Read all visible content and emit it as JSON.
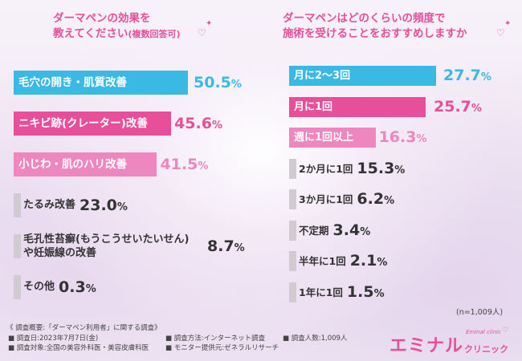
{
  "colors": {
    "pink": "#e74f9a",
    "blue": "#39b9e4",
    "light_pink": "#ee86bf",
    "grey": "#cfcbd1"
  },
  "left": {
    "title_line1": "ダーマペンの効果を",
    "title_line2_main": "教えてください",
    "title_line2_note": "(複数回答可)"
  },
  "right": {
    "title_line1": "ダーマペンはどのくらいの頻度で",
    "title_line2": "施術を受けることをおすすめしますか"
  },
  "chart_data": [
    {
      "type": "bar",
      "orientation": "horizontal",
      "title": "ダーマペンの効果を教えてください(複数回答可)",
      "unit": "%",
      "categories": [
        "毛穴の開き・肌質改善",
        "ニキビ跡(クレーター)改善",
        "小じわ・肌のハリ改善",
        "たるみ改善",
        "毛孔性苔癬(もうこうせいたいせん)や妊娠線の改善",
        "その他"
      ],
      "values": [
        50.5,
        45.6,
        41.5,
        23.0,
        8.7,
        0.3
      ],
      "value_labels": [
        "50.5",
        "45.6",
        "41.5",
        "23.0",
        "8.7",
        "0.3"
      ],
      "label_lines": [
        [
          "毛穴の開き・肌質改善"
        ],
        [
          "ニキビ跡(クレーター)改善"
        ],
        [
          "小じわ・肌のハリ改善"
        ],
        [
          "たるみ改善"
        ],
        [
          "毛孔性苔癬(もうこうせいたいせん)",
          "や妊娠線の改善"
        ],
        [
          "その他"
        ]
      ],
      "bar_colors": [
        "blue",
        "pink",
        "light_pink",
        "grey",
        "grey",
        "grey"
      ],
      "label_colors": [
        "#ffffff",
        "#ffffff",
        "#ffffff",
        "#333333",
        "#333333",
        "#333333"
      ],
      "value_colors": [
        "#39b9e4",
        "#e74f9a",
        "#ee86bf",
        "#333333",
        "#333333",
        "#333333"
      ]
    },
    {
      "type": "bar",
      "orientation": "horizontal",
      "title": "ダーマペンはどのくらいの頻度で施術を受けることをおすすめしますか",
      "unit": "%",
      "categories": [
        "月に2〜3回",
        "月に1回",
        "週に1回以上",
        "2か月に1回",
        "3か月に1回",
        "不定期",
        "半年に1回",
        "1年に1回"
      ],
      "values": [
        27.7,
        25.7,
        16.3,
        15.3,
        6.2,
        3.4,
        2.1,
        1.5
      ],
      "value_labels": [
        "27.7",
        "25.7",
        "16.3",
        "15.3",
        "6.2",
        "3.4",
        "2.1",
        "1.5"
      ],
      "label_lines": [
        [
          "月に2〜3回"
        ],
        [
          "月に1回"
        ],
        [
          "週に1回以上"
        ],
        [
          "2か月に1回"
        ],
        [
          "3か月に1回"
        ],
        [
          "不定期"
        ],
        [
          "半年に1回"
        ],
        [
          "1年に1回"
        ]
      ],
      "bar_colors": [
        "blue",
        "pink",
        "light_pink",
        "grey",
        "grey",
        "grey",
        "grey",
        "grey"
      ],
      "label_colors": [
        "#ffffff",
        "#ffffff",
        "#ffffff",
        "#333333",
        "#333333",
        "#333333",
        "#333333",
        "#333333"
      ],
      "value_colors": [
        "#39b9e4",
        "#e74f9a",
        "#ee86bf",
        "#333333",
        "#333333",
        "#333333",
        "#333333",
        "#333333"
      ]
    }
  ],
  "n_note": "(n=1,009人)",
  "footer": {
    "overview": "《 調査概要:「ダーマペン利用者」に関する調査》",
    "date": "■ 調査日:2023年7月7日(金)",
    "method": "■ 調査方法:インターネット調査",
    "count": "■ 調査人数:1,009人",
    "target": "■ 調査対象:全国の美容外科医・美容皮膚科医",
    "provider": "■ モニター提供元:ゼネラルリサーチ"
  },
  "logo": {
    "main": "エミナル",
    "sub": "クリニック",
    "script": "Eminal clinic"
  }
}
